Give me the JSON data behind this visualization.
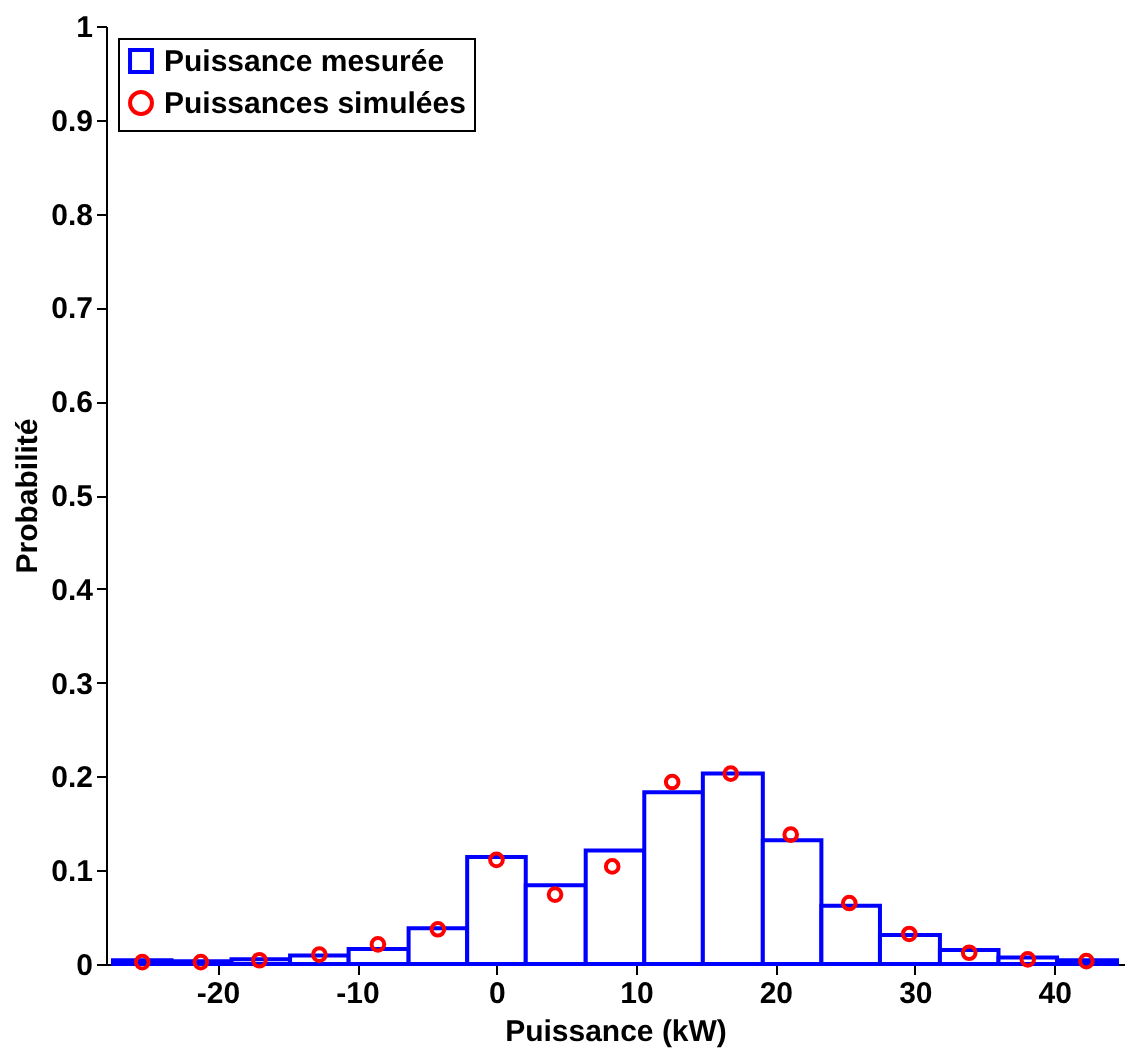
{
  "chart_data": {
    "type": "histogram",
    "xlabel": "Puissance (kW)",
    "ylabel": "Probabilité",
    "bins": [
      -27.5,
      -23.3,
      -19.0,
      -14.8,
      -10.6,
      -6.3,
      -2.1,
      2.1,
      6.4,
      10.6,
      14.8,
      19.1,
      23.3,
      27.5,
      31.8,
      36.0,
      40.2,
      44.5
    ],
    "series": [
      {
        "name": "Puissance mesurée",
        "color": "#0000ff",
        "values": [
          0.004,
          0.003,
          0.005,
          0.009,
          0.016,
          0.038,
          0.114,
          0.084,
          0.121,
          0.183,
          0.203,
          0.132,
          0.062,
          0.031,
          0.015,
          0.007,
          0.004
        ]
      },
      {
        "name": "Puissances simulées",
        "type": "scatter",
        "color": "#ff0000",
        "marker": "circle",
        "x": [
          -25.4,
          -21.2,
          -17.0,
          -12.7,
          -8.5,
          -4.2,
          0.0,
          4.2,
          8.3,
          12.6,
          16.8,
          21.1,
          25.3,
          29.6,
          33.9,
          38.1,
          42.3
        ],
        "values": [
          0.002,
          0.002,
          0.004,
          0.01,
          0.021,
          0.037,
          0.111,
          0.074,
          0.104,
          0.194,
          0.203,
          0.138,
          0.065,
          0.032,
          0.012,
          0.005,
          0.003
        ]
      }
    ],
    "xlim": [
      -28,
      45
    ],
    "xticks": [
      -20,
      -10,
      0,
      10,
      20,
      30,
      40
    ],
    "ylim": [
      0,
      1
    ],
    "yticks": [
      0,
      0.1,
      0.2,
      0.3,
      0.4,
      0.5,
      0.6,
      0.7,
      0.8,
      0.9,
      1
    ],
    "grid": false,
    "legend": "top left"
  }
}
